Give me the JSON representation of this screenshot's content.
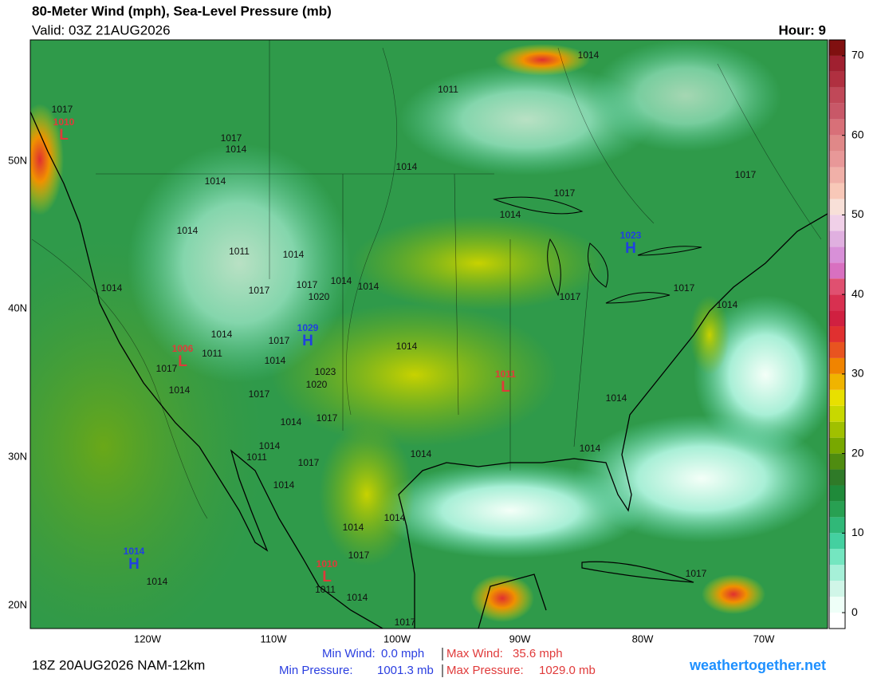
{
  "header": {
    "title": "80-Meter Wind (mph), Sea-Level Pressure (mb)",
    "valid": "Valid: 03Z 21AUG2026",
    "hour": "Hour: 9"
  },
  "colorbar": {
    "clim": [
      -2,
      72
    ],
    "bins": [
      -2,
      0,
      2,
      4,
      6,
      8,
      10,
      12,
      14,
      16,
      18,
      20,
      22,
      24,
      26,
      28,
      30,
      32,
      34,
      36,
      38,
      40,
      42,
      44,
      46,
      48,
      50,
      52,
      54,
      56,
      58,
      60,
      62,
      64,
      66,
      68,
      70,
      72
    ],
    "colors": [
      "#ffffff",
      "#effff8",
      "#d0f6e8",
      "#a6f0d8",
      "#74e6c0",
      "#44d0a0",
      "#30b878",
      "#28a052",
      "#1f8a3a",
      "#2f7a28",
      "#4f8c10",
      "#78a800",
      "#a0c000",
      "#c8d800",
      "#e8e000",
      "#f0b400",
      "#f08400",
      "#e85420",
      "#e03030",
      "#d02040",
      "#d83050",
      "#e05070",
      "#d870c0",
      "#d890d8",
      "#e0b0e0",
      "#f0d0e8",
      "#f8e0d8",
      "#f8c8b8",
      "#f0b0a8",
      "#e89898",
      "#e08888",
      "#d87078",
      "#c85868",
      "#c04858",
      "#b03040",
      "#a02030",
      "#801010"
    ],
    "ticks": [
      0,
      10,
      20,
      30,
      40,
      50,
      60,
      70
    ]
  },
  "map": {
    "lat_labels": [
      "50N",
      "40N",
      "30N",
      "20N"
    ],
    "lon_labels": [
      "120W",
      "110W",
      "100W",
      "90W",
      "80W",
      "70W"
    ],
    "isobar_labels": [
      1017,
      1017,
      1014,
      1014,
      1011,
      1014,
      1017,
      1017,
      1014,
      1014,
      1014,
      1011,
      1014,
      1017,
      1014,
      1014,
      1020,
      1017,
      1014,
      1017,
      1017,
      1014,
      1014,
      1014,
      1017,
      1014,
      1011,
      1017,
      1014,
      1017,
      1020,
      1023,
      1014,
      1017,
      1011,
      1014,
      1017,
      1014,
      1014,
      1014,
      1014,
      1014,
      1014,
      1017,
      1014,
      1011,
      1014,
      1017,
      1017
    ],
    "highs": [
      {
        "symbol": "H",
        "value": 1029
      },
      {
        "symbol": "H",
        "value": 1023
      },
      {
        "symbol": "H",
        "value": 1014
      }
    ],
    "lows": [
      {
        "symbol": "L",
        "value": 1010
      },
      {
        "symbol": "L",
        "value": 1006
      },
      {
        "symbol": "L",
        "value": 1011
      },
      {
        "symbol": "L",
        "value": 1010
      }
    ]
  },
  "footer": {
    "run": "18Z 20AUG2026 NAM-12km",
    "min_wind": {
      "label": "Min Wind:",
      "value": "0.0 mph"
    },
    "max_wind": {
      "label": "Max Wind:",
      "value": "35.6 mph"
    },
    "min_pressure": {
      "label": "Min Pressure:",
      "value": "1001.3 mb"
    },
    "max_pressure": {
      "label": "Max Pressure:",
      "value": "1029.0 mb"
    },
    "site": "weathertogether.net"
  }
}
